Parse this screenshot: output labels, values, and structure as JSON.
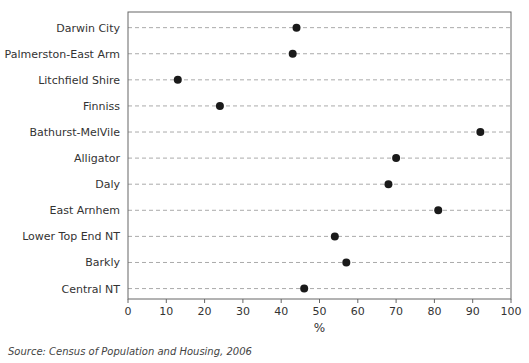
{
  "chart_data": {
    "type": "dot",
    "orientation": "horizontal",
    "categories": [
      "Darwin City",
      "Palmerston-East Arm",
      "Litchfield Shire",
      "Finniss",
      "Bathurst-MelVile",
      "Alligator",
      "Daly",
      "East Arnhem",
      "Lower Top End NT",
      "Barkly",
      "Central NT"
    ],
    "values": [
      44,
      43,
      13,
      24,
      92,
      70,
      68,
      81,
      54,
      57,
      46
    ],
    "color": "#1a1a1a",
    "line_style": "dashed",
    "xlabel": "%",
    "xlim": [
      0,
      100
    ],
    "xticks": [
      0,
      10,
      20,
      30,
      40,
      50,
      60,
      70,
      80,
      90,
      100
    ],
    "source": "Source: Census of Population and Housing, 2006"
  }
}
